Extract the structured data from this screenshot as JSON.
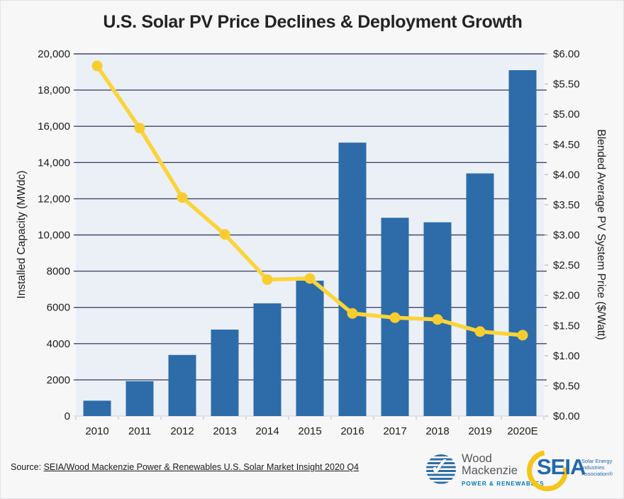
{
  "chart": {
    "title": "U.S. Solar PV Price Declines & Deployment Growth",
    "left_axis_title": "Installed Capacity (MWdc)",
    "right_axis_title": "Blended Average PV System Price ($/Watt)"
  },
  "chart_data": {
    "type": "bar",
    "title": "U.S. Solar PV Price Declines & Deployment Growth",
    "categories": [
      "2010",
      "2011",
      "2012",
      "2013",
      "2014",
      "2015",
      "2016",
      "2017",
      "2018",
      "2019",
      "2020E"
    ],
    "series": [
      {
        "name": "Installed Capacity (MWdc)",
        "type": "bar",
        "axis": "left",
        "values": [
          850,
          1925,
          3375,
          4775,
          6225,
          7475,
          15100,
          10950,
          10700,
          13400,
          19100
        ]
      },
      {
        "name": "Blended Average PV System Price ($/Watt)",
        "type": "line",
        "axis": "right",
        "values": [
          5.8,
          4.77,
          3.62,
          3.01,
          2.26,
          2.28,
          1.7,
          1.63,
          1.6,
          1.4,
          1.34
        ]
      }
    ],
    "left_axis": {
      "label": "Installed Capacity (MWdc)",
      "min": 0,
      "max": 20000,
      "tick_step": 2000,
      "tick_labels": [
        "0",
        "2000",
        "4000",
        "6000",
        "8000",
        "10,000",
        "12,000",
        "14,000",
        "16,000",
        "18,000",
        "20,000"
      ]
    },
    "right_axis": {
      "label": "Blended Average PV System Price ($/Watt)",
      "min": 0,
      "max": 6,
      "tick_step": 0.5,
      "tick_labels": [
        "$0.00",
        "$0.50",
        "$1.00",
        "$1.50",
        "$2.00",
        "$2.50",
        "$3.00",
        "$3.50",
        "$4.00",
        "$4.50",
        "$5.00",
        "$5.50",
        "$6.00"
      ]
    },
    "grid": "horizontal",
    "legend": "none"
  },
  "colors": {
    "bar": "#2d6ca8",
    "line": "#fbd43c",
    "dot": "#f8cd2f",
    "plot_bg": "#ebf0f7",
    "gridline": "#45456b",
    "zero_line": "#d8dde5",
    "minor_tick": "#b7c4d6",
    "tick_text": "#1c1c1c"
  },
  "footer": {
    "source_prefix": "Source: ",
    "source_link": "SEIA/Wood Mackenzie Power & Renewables U.S. Solar Market Insight 2020 Q4",
    "logos": {
      "woodmac": {
        "check": "✓",
        "line1": "Wood",
        "line2": "Mackenzie",
        "tagline": "POWER & RENEWABLES"
      },
      "seia": {
        "acronym": "SEIA",
        "name_line1": "Solar Energy",
        "name_line2": "Industries",
        "name_line3": "Association®"
      }
    }
  }
}
